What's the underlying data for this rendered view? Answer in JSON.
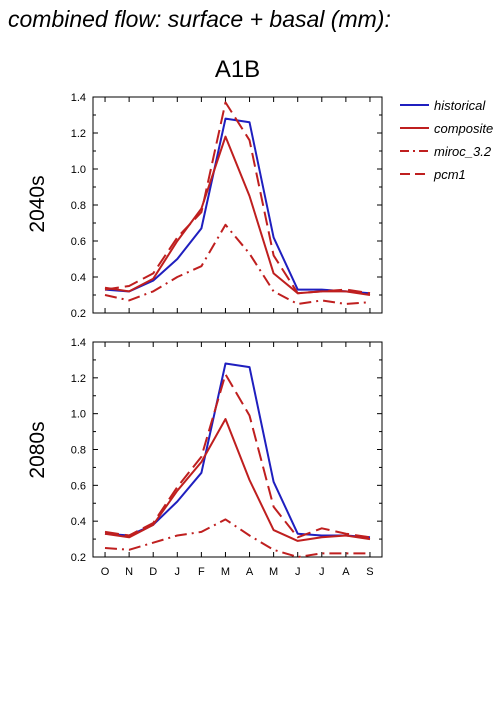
{
  "title": "combined flow: surface + basal (mm):",
  "scenario": "A1B",
  "chart_data": [
    {
      "type": "line",
      "panel": "2040s",
      "ylabel": "2040s",
      "categories": [
        "O",
        "N",
        "D",
        "J",
        "F",
        "M",
        "A",
        "M",
        "J",
        "J",
        "A",
        "S"
      ],
      "ylim": [
        0.2,
        1.4
      ],
      "yticks": [
        "0.2",
        "0.4",
        "0.6",
        "0.8",
        "1.0",
        "1.2",
        "1.4"
      ],
      "show_xlabels": false,
      "series": [
        {
          "name": "historical",
          "color": "#1f1fbf",
          "dash": "solid",
          "values": [
            0.33,
            0.32,
            0.38,
            0.5,
            0.67,
            1.28,
            1.26,
            0.62,
            0.33,
            0.33,
            0.32,
            0.31
          ]
        },
        {
          "name": "composite",
          "color": "#bf1f1f",
          "dash": "solid",
          "values": [
            0.34,
            0.32,
            0.39,
            0.6,
            0.78,
            1.18,
            0.85,
            0.42,
            0.31,
            0.32,
            0.32,
            0.3
          ]
        },
        {
          "name": "miroc_3.2",
          "color": "#bf1f1f",
          "dash": "dashdot",
          "values": [
            0.3,
            0.27,
            0.32,
            0.4,
            0.46,
            0.69,
            0.53,
            0.32,
            0.25,
            0.27,
            0.25,
            0.26
          ]
        },
        {
          "name": "pcm1",
          "color": "#bf1f1f",
          "dash": "dash",
          "values": [
            0.33,
            0.35,
            0.42,
            0.62,
            0.76,
            1.37,
            1.16,
            0.52,
            0.31,
            0.32,
            0.33,
            0.31
          ]
        }
      ]
    },
    {
      "type": "line",
      "panel": "2080s",
      "ylabel": "2080s",
      "categories": [
        "O",
        "N",
        "D",
        "J",
        "F",
        "M",
        "A",
        "M",
        "J",
        "J",
        "A",
        "S"
      ],
      "ylim": [
        0.2,
        1.4
      ],
      "yticks": [
        "0.2",
        "0.4",
        "0.6",
        "0.8",
        "1.0",
        "1.2",
        "1.4"
      ],
      "show_xlabels": true,
      "series": [
        {
          "name": "historical",
          "color": "#1f1fbf",
          "dash": "solid",
          "values": [
            0.33,
            0.32,
            0.38,
            0.51,
            0.67,
            1.28,
            1.26,
            0.62,
            0.33,
            0.32,
            0.32,
            0.31
          ]
        },
        {
          "name": "composite",
          "color": "#bf1f1f",
          "dash": "solid",
          "values": [
            0.33,
            0.31,
            0.38,
            0.57,
            0.73,
            0.97,
            0.63,
            0.35,
            0.29,
            0.31,
            0.32,
            0.3
          ]
        },
        {
          "name": "miroc_3.2",
          "color": "#bf1f1f",
          "dash": "dashdot",
          "values": [
            0.25,
            0.24,
            0.28,
            0.32,
            0.34,
            0.41,
            0.32,
            0.24,
            0.2,
            0.22,
            0.22,
            0.22
          ]
        },
        {
          "name": "pcm1",
          "color": "#bf1f1f",
          "dash": "dash",
          "values": [
            0.34,
            0.32,
            0.39,
            0.59,
            0.76,
            1.22,
            0.99,
            0.48,
            0.31,
            0.36,
            0.33,
            0.31
          ]
        }
      ]
    }
  ],
  "legend": [
    {
      "name": "historical",
      "color": "#1f1fbf",
      "dash": "solid"
    },
    {
      "name": "composite",
      "color": "#bf1f1f",
      "dash": "solid"
    },
    {
      "name": "miroc_3.2",
      "color": "#bf1f1f",
      "dash": "dashdot"
    },
    {
      "name": "pcm1",
      "color": "#bf1f1f",
      "dash": "dash"
    }
  ]
}
